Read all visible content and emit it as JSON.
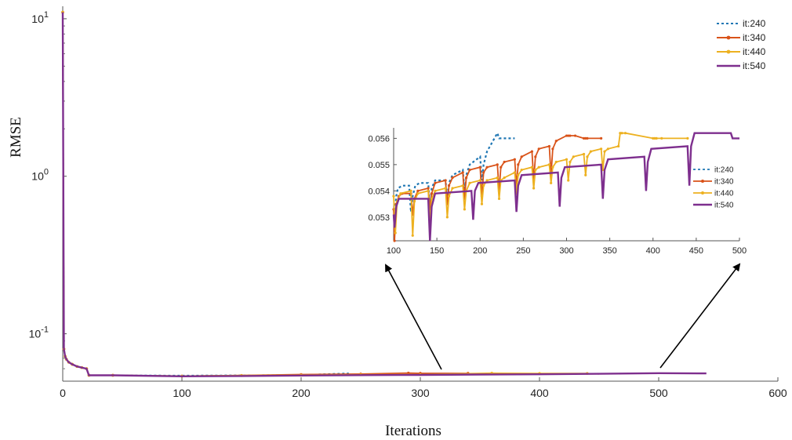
{
  "chart_data": [
    {
      "type": "line",
      "panel": "main",
      "title": "",
      "xlabel": "Iterations",
      "ylabel": "RMSE",
      "xlim": [
        0,
        600
      ],
      "ylim": [
        0.05,
        12
      ],
      "yscale": "log",
      "xticks": [
        0,
        100,
        200,
        300,
        400,
        500,
        600
      ],
      "yticks": [
        {
          "value": 0.1,
          "base": "10",
          "exp": "-1"
        },
        {
          "value": 1,
          "base": "10",
          "exp": "0"
        },
        {
          "value": 10,
          "base": "10",
          "exp": "1"
        }
      ],
      "legend": {
        "position": "top-right"
      },
      "series": [
        {
          "name": "it:240",
          "color": "#1f77b4",
          "style": "dotted",
          "x": [
            0,
            1,
            2,
            3,
            5,
            8,
            12,
            16,
            20,
            22,
            42,
            100,
            150,
            200,
            240
          ],
          "y": [
            11,
            0.08,
            0.072,
            0.069,
            0.066,
            0.064,
            0.062,
            0.061,
            0.06,
            0.0545,
            0.0545,
            0.0543,
            0.0545,
            0.0548,
            0.0561
          ]
        },
        {
          "name": "it:340",
          "color": "#d95319",
          "style": "solid-star",
          "x": [
            0,
            1,
            2,
            3,
            5,
            8,
            12,
            16,
            20,
            22,
            42,
            100,
            150,
            200,
            250,
            290,
            300,
            340
          ],
          "y": [
            11,
            0.08,
            0.072,
            0.069,
            0.066,
            0.064,
            0.062,
            0.061,
            0.06,
            0.0545,
            0.0545,
            0.0538,
            0.0544,
            0.0551,
            0.0555,
            0.0563,
            0.0561,
            0.0561
          ]
        },
        {
          "name": "it:440",
          "color": "#edb120",
          "style": "solid-star",
          "x": [
            0,
            1,
            2,
            3,
            5,
            8,
            12,
            16,
            20,
            22,
            42,
            100,
            150,
            200,
            250,
            300,
            360,
            400,
            440
          ],
          "y": [
            11,
            0.08,
            0.072,
            0.069,
            0.066,
            0.064,
            0.062,
            0.061,
            0.06,
            0.0545,
            0.0545,
            0.0539,
            0.0543,
            0.0546,
            0.0549,
            0.0551,
            0.0562,
            0.056,
            0.056
          ]
        },
        {
          "name": "it:540",
          "color": "#7e2f8e",
          "style": "solid",
          "x": [
            0,
            1,
            2,
            3,
            5,
            8,
            12,
            16,
            20,
            22,
            42,
            100,
            150,
            200,
            250,
            300,
            350,
            400,
            450,
            500,
            540
          ],
          "y": [
            11,
            0.08,
            0.072,
            0.069,
            0.066,
            0.064,
            0.062,
            0.061,
            0.06,
            0.0545,
            0.0545,
            0.0537,
            0.0539,
            0.0543,
            0.0546,
            0.0548,
            0.0551,
            0.0553,
            0.0557,
            0.0562,
            0.056
          ]
        }
      ]
    },
    {
      "type": "line",
      "panel": "inset",
      "title": "",
      "xlabel": "",
      "ylabel": "",
      "xlim": [
        100,
        500
      ],
      "ylim": [
        0.0521,
        0.0564
      ],
      "xticks": [
        100,
        150,
        200,
        250,
        300,
        350,
        400,
        450,
        500
      ],
      "yticks": [
        0.053,
        0.054,
        0.055,
        0.056
      ],
      "legend": {
        "position": "right"
      },
      "series": [
        {
          "name": "it:240",
          "color": "#1f77b4",
          "style": "dotted",
          "x": [
            100,
            101,
            103,
            105,
            110,
            118,
            120,
            122,
            125,
            130,
            140,
            142,
            144,
            148,
            160,
            162,
            164,
            168,
            180,
            182,
            184,
            188,
            200,
            202,
            204,
            208,
            220,
            222,
            224,
            228,
            240
          ],
          "y": [
            0.0533,
            0.0531,
            0.0538,
            0.0541,
            0.0542,
            0.0542,
            0.0532,
            0.0538,
            0.0542,
            0.0543,
            0.0543,
            0.0534,
            0.0541,
            0.0544,
            0.0544,
            0.0537,
            0.0543,
            0.0546,
            0.0548,
            0.054,
            0.0546,
            0.055,
            0.0553,
            0.0544,
            0.055,
            0.0555,
            0.0562,
            0.056,
            0.056,
            0.056,
            0.056
          ]
        },
        {
          "name": "it:340",
          "color": "#d95319",
          "style": "solid-star",
          "x": [
            100,
            101,
            103,
            106,
            110,
            120,
            122,
            124,
            128,
            140,
            142,
            144,
            148,
            160,
            162,
            164,
            168,
            180,
            182,
            184,
            188,
            200,
            202,
            204,
            208,
            220,
            222,
            224,
            228,
            240,
            242,
            244,
            248,
            260,
            262,
            264,
            268,
            280,
            282,
            284,
            288,
            300,
            302,
            304,
            310,
            320,
            322,
            324,
            340
          ],
          "y": [
            0.0533,
            0.0521,
            0.0535,
            0.0538,
            0.0539,
            0.0539,
            0.0531,
            0.0537,
            0.054,
            0.0541,
            0.0533,
            0.0539,
            0.0543,
            0.0544,
            0.0535,
            0.0542,
            0.0545,
            0.0547,
            0.0537,
            0.0545,
            0.0548,
            0.0549,
            0.0538,
            0.0547,
            0.0549,
            0.055,
            0.054,
            0.0549,
            0.0551,
            0.0552,
            0.0542,
            0.055,
            0.0553,
            0.0555,
            0.0544,
            0.0553,
            0.0556,
            0.0557,
            0.0546,
            0.0556,
            0.0559,
            0.0561,
            0.0561,
            0.0561,
            0.0561,
            0.056,
            0.056,
            0.056,
            0.056
          ]
        },
        {
          "name": "it:440",
          "color": "#edb120",
          "style": "solid-star",
          "x": [
            100,
            102,
            104,
            108,
            120,
            122,
            124,
            128,
            140,
            142,
            144,
            148,
            160,
            162,
            164,
            168,
            180,
            182,
            184,
            188,
            200,
            202,
            204,
            208,
            220,
            222,
            224,
            228,
            240,
            242,
            244,
            248,
            260,
            262,
            264,
            268,
            280,
            282,
            284,
            288,
            300,
            302,
            304,
            308,
            320,
            322,
            324,
            328,
            340,
            342,
            344,
            348,
            360,
            362,
            364,
            368,
            400,
            402,
            404,
            410,
            440
          ],
          "y": [
            0.0538,
            0.0524,
            0.0536,
            0.0539,
            0.054,
            0.0523,
            0.0536,
            0.0539,
            0.054,
            0.0528,
            0.0537,
            0.054,
            0.0541,
            0.053,
            0.0538,
            0.0541,
            0.0542,
            0.0533,
            0.054,
            0.0543,
            0.0544,
            0.0535,
            0.0542,
            0.0544,
            0.0545,
            0.0537,
            0.0544,
            0.0545,
            0.0547,
            0.0539,
            0.0546,
            0.0548,
            0.0549,
            0.0541,
            0.0548,
            0.0549,
            0.055,
            0.0543,
            0.0549,
            0.0551,
            0.0552,
            0.0544,
            0.0551,
            0.0553,
            0.0554,
            0.0546,
            0.0553,
            0.0555,
            0.0556,
            0.0548,
            0.0555,
            0.0556,
            0.0557,
            0.0562,
            0.0562,
            0.0562,
            0.056,
            0.056,
            0.056,
            0.056,
            0.056
          ]
        },
        {
          "name": "it:540",
          "color": "#7e2f8e",
          "style": "solid",
          "x": [
            100,
            101,
            103,
            106,
            110,
            140,
            142,
            144,
            148,
            190,
            192,
            194,
            198,
            240,
            242,
            244,
            248,
            290,
            292,
            294,
            298,
            340,
            342,
            344,
            348,
            390,
            392,
            394,
            398,
            440,
            442,
            444,
            448,
            490,
            492,
            494,
            500
          ],
          "y": [
            0.0531,
            0.0526,
            0.0534,
            0.0537,
            0.0537,
            0.0537,
            0.0521,
            0.0534,
            0.0539,
            0.054,
            0.0529,
            0.054,
            0.0543,
            0.0544,
            0.0532,
            0.0542,
            0.0546,
            0.0547,
            0.0534,
            0.0545,
            0.0549,
            0.055,
            0.0537,
            0.0548,
            0.0552,
            0.0553,
            0.054,
            0.0551,
            0.0556,
            0.0557,
            0.0542,
            0.0557,
            0.0562,
            0.0562,
            0.056,
            0.056,
            0.056
          ]
        }
      ]
    }
  ]
}
